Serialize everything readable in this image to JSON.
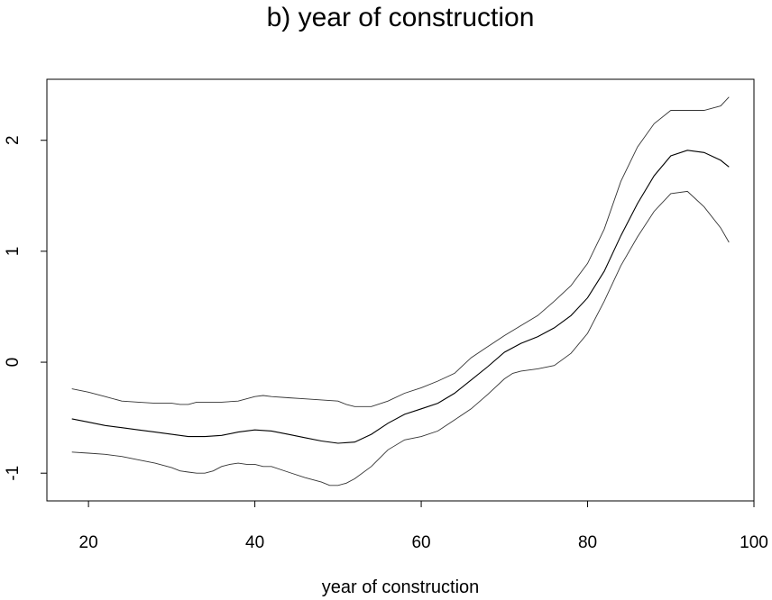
{
  "chart_data": {
    "type": "line",
    "title": "b) year of construction",
    "xlabel": "year of construction",
    "ylabel": "",
    "xlim": [
      15,
      100
    ],
    "ylim": [
      -1.25,
      2.55
    ],
    "xticks": [
      20,
      40,
      60,
      80,
      100
    ],
    "yticks": [
      -1,
      0,
      1,
      2
    ],
    "xtick_labels": [
      "20",
      "40",
      "60",
      "80",
      "100"
    ],
    "ytick_labels": [
      "-1",
      "0",
      "1",
      "2"
    ],
    "grid": false,
    "series": [
      {
        "role": "upper",
        "x": [
          18,
          20,
          22,
          24,
          26,
          28,
          30,
          31,
          32,
          33,
          34,
          36,
          38,
          40,
          41,
          42,
          44,
          46,
          48,
          50,
          51,
          52,
          54,
          56,
          58,
          60,
          62,
          64,
          66,
          68,
          70,
          72,
          74,
          76,
          78,
          80,
          82,
          84,
          86,
          88,
          90,
          92,
          94,
          96,
          97
        ],
        "y": [
          -0.24,
          -0.27,
          -0.31,
          -0.35,
          -0.36,
          -0.37,
          -0.37,
          -0.38,
          -0.38,
          -0.36,
          -0.36,
          -0.36,
          -0.35,
          -0.31,
          -0.3,
          -0.31,
          -0.32,
          -0.33,
          -0.34,
          -0.35,
          -0.38,
          -0.4,
          -0.4,
          -0.35,
          -0.28,
          -0.23,
          -0.17,
          -0.1,
          0.04,
          0.14,
          0.24,
          0.33,
          0.42,
          0.55,
          0.69,
          0.89,
          1.2,
          1.63,
          1.94,
          2.15,
          2.27,
          2.27,
          2.27,
          2.31,
          2.39
        ]
      },
      {
        "role": "estimate",
        "x": [
          18,
          20,
          22,
          24,
          26,
          28,
          30,
          32,
          34,
          36,
          38,
          40,
          42,
          44,
          46,
          48,
          50,
          52,
          54,
          56,
          58,
          60,
          62,
          64,
          66,
          68,
          70,
          72,
          74,
          76,
          78,
          80,
          82,
          84,
          86,
          88,
          90,
          92,
          94,
          96,
          97
        ],
        "y": [
          -0.51,
          -0.54,
          -0.57,
          -0.59,
          -0.61,
          -0.63,
          -0.65,
          -0.67,
          -0.67,
          -0.66,
          -0.63,
          -0.61,
          -0.62,
          -0.65,
          -0.68,
          -0.71,
          -0.73,
          -0.72,
          -0.65,
          -0.55,
          -0.47,
          -0.42,
          -0.37,
          -0.28,
          -0.16,
          -0.04,
          0.09,
          0.17,
          0.23,
          0.31,
          0.42,
          0.58,
          0.82,
          1.14,
          1.43,
          1.68,
          1.86,
          1.91,
          1.89,
          1.82,
          1.76
        ]
      },
      {
        "role": "lower",
        "x": [
          18,
          20,
          22,
          24,
          26,
          28,
          30,
          31,
          32,
          33,
          34,
          35,
          36,
          37,
          38,
          39,
          40,
          41,
          42,
          44,
          46,
          48,
          49,
          50,
          51,
          52,
          54,
          56,
          58,
          60,
          62,
          64,
          66,
          68,
          70,
          71,
          72,
          74,
          76,
          78,
          80,
          82,
          84,
          86,
          88,
          90,
          92,
          94,
          96,
          97
        ],
        "y": [
          -0.81,
          -0.82,
          -0.83,
          -0.85,
          -0.88,
          -0.91,
          -0.95,
          -0.98,
          -0.99,
          -1.0,
          -1.0,
          -0.98,
          -0.94,
          -0.92,
          -0.91,
          -0.92,
          -0.92,
          -0.94,
          -0.94,
          -0.99,
          -1.04,
          -1.08,
          -1.11,
          -1.11,
          -1.09,
          -1.05,
          -0.94,
          -0.79,
          -0.7,
          -0.67,
          -0.62,
          -0.52,
          -0.42,
          -0.29,
          -0.15,
          -0.1,
          -0.08,
          -0.06,
          -0.03,
          0.08,
          0.26,
          0.55,
          0.87,
          1.13,
          1.36,
          1.52,
          1.54,
          1.4,
          1.21,
          1.08
        ]
      }
    ]
  }
}
